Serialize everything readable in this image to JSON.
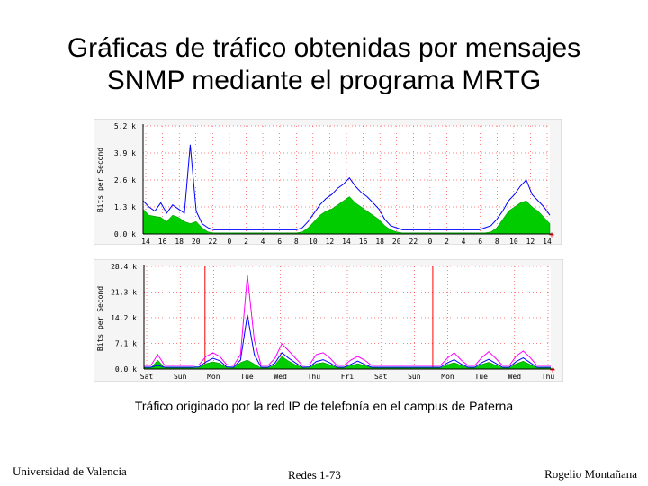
{
  "title": {
    "line1": "Gráficas de tráfico obtenidas por mensajes",
    "line2": "SNMP mediante el programa MRTG"
  },
  "caption": "Tráfico originado por la red IP de telefonía en el campus de Paterna",
  "footer": {
    "left": "Universidad de Valencia",
    "center": "Redes 1-73",
    "right": "Rogelio Montañana"
  },
  "colors": {
    "in_fill": "#00cc00",
    "out_line": "#0000ff",
    "peak_line": "#ff00ff",
    "marker": "#ff0000",
    "grid": "#ff0000",
    "plot_bg": "#ffffff",
    "frame": "#f5f5f5"
  },
  "chart_data": [
    {
      "type": "area",
      "name": "daily",
      "ylabel": "Bits per Second",
      "ylim": [
        0,
        5.2
      ],
      "yticks": [
        "0.0 k",
        "1.3 k",
        "2.6 k",
        "3.9 k",
        "5.2 k"
      ],
      "ytick_values": [
        0,
        1.3,
        2.6,
        3.9,
        5.2
      ],
      "xticks": [
        "14",
        "16",
        "18",
        "20",
        "22",
        "0",
        "2",
        "4",
        "6",
        "8",
        "10",
        "12",
        "14",
        "16",
        "18",
        "20",
        "22",
        "0",
        "2",
        "4",
        "6",
        "8",
        "10",
        "12",
        "14"
      ],
      "series": [
        {
          "name": "in",
          "values": [
            1.2,
            0.9,
            0.85,
            0.8,
            0.6,
            0.9,
            0.8,
            0.6,
            0.5,
            0.6,
            0.3,
            0.1,
            0.05,
            0.05,
            0.05,
            0.05,
            0.05,
            0.05,
            0.05,
            0.05,
            0.05,
            0.05,
            0.05,
            0.05,
            0.05,
            0.05,
            0.05,
            0.1,
            0.3,
            0.6,
            0.9,
            1.1,
            1.2,
            1.4,
            1.6,
            1.8,
            1.5,
            1.3,
            1.1,
            0.9,
            0.7,
            0.4,
            0.2,
            0.1,
            0.05,
            0.05,
            0.05,
            0.05,
            0.05,
            0.05,
            0.05,
            0.05,
            0.05,
            0.05,
            0.05,
            0.05,
            0.05,
            0.05,
            0.05,
            0.1,
            0.3,
            0.7,
            1.1,
            1.3,
            1.5,
            1.6,
            1.3,
            1.1,
            0.8,
            0.5
          ]
        },
        {
          "name": "out",
          "values": [
            1.6,
            1.3,
            1.1,
            1.5,
            1.0,
            1.4,
            1.2,
            1.0,
            4.3,
            1.1,
            0.5,
            0.3,
            0.2,
            0.2,
            0.2,
            0.2,
            0.2,
            0.2,
            0.2,
            0.2,
            0.2,
            0.2,
            0.2,
            0.2,
            0.2,
            0.2,
            0.2,
            0.3,
            0.6,
            1.0,
            1.4,
            1.7,
            1.9,
            2.2,
            2.4,
            2.7,
            2.3,
            2.0,
            1.8,
            1.5,
            1.2,
            0.7,
            0.4,
            0.3,
            0.2,
            0.2,
            0.2,
            0.2,
            0.2,
            0.2,
            0.2,
            0.2,
            0.2,
            0.2,
            0.2,
            0.2,
            0.2,
            0.2,
            0.3,
            0.4,
            0.7,
            1.1,
            1.6,
            1.9,
            2.3,
            2.6,
            1.9,
            1.6,
            1.3,
            0.9
          ]
        }
      ]
    },
    {
      "type": "area",
      "name": "weekly",
      "ylabel": "Bits per Second",
      "ylim": [
        0,
        28.4
      ],
      "yticks": [
        "0.0 k",
        "7.1 k",
        "14.2 k",
        "21.3 k",
        "28.4 k"
      ],
      "ytick_values": [
        0,
        7.1,
        14.2,
        21.3,
        28.4
      ],
      "xticks": [
        "Sat",
        "Sun",
        "Mon",
        "Tue",
        "Wed",
        "Thu",
        "Fri",
        "Sat",
        "Sun",
        "Mon",
        "Tue",
        "Wed",
        "Thu"
      ],
      "series": [
        {
          "name": "in",
          "values": [
            0.3,
            0.3,
            2.5,
            0.3,
            0.3,
            0.3,
            0.3,
            0.3,
            0.4,
            1.5,
            2.0,
            1.6,
            0.4,
            0.3,
            1.8,
            2.5,
            1.4,
            0.3,
            0.3,
            1.2,
            3.5,
            2.2,
            1.2,
            0.3,
            0.4,
            1.5,
            1.8,
            1.2,
            0.3,
            0.3,
            1.0,
            1.5,
            1.0,
            0.3,
            0.3,
            0.3,
            0.3,
            0.3,
            0.3,
            0.3,
            0.3,
            0.3,
            0.3,
            0.3,
            1.2,
            1.8,
            1.0,
            0.3,
            0.3,
            1.3,
            1.9,
            1.1,
            0.3,
            0.3,
            1.5,
            2.2,
            1.3,
            0.3,
            0.3,
            0.3
          ]
        },
        {
          "name": "out",
          "values": [
            0.5,
            0.5,
            1.0,
            0.5,
            0.5,
            0.5,
            0.5,
            0.5,
            0.6,
            2.0,
            3.0,
            2.3,
            0.6,
            0.5,
            2.5,
            15.0,
            4.0,
            0.5,
            0.5,
            1.7,
            4.5,
            3.0,
            1.7,
            0.5,
            0.6,
            2.1,
            2.6,
            1.7,
            0.5,
            0.5,
            1.3,
            2.2,
            1.3,
            0.5,
            0.5,
            0.5,
            0.5,
            0.5,
            0.5,
            0.5,
            0.5,
            0.5,
            0.5,
            0.5,
            1.7,
            2.6,
            1.4,
            0.5,
            0.5,
            1.8,
            2.7,
            1.6,
            0.5,
            0.5,
            2.1,
            3.1,
            1.8,
            0.5,
            0.5,
            0.5
          ]
        },
        {
          "name": "peak",
          "values": [
            1.0,
            1.0,
            4.0,
            1.0,
            1.0,
            1.0,
            1.0,
            1.0,
            1.2,
            3.5,
            4.5,
            3.5,
            1.2,
            1.0,
            4.0,
            26.0,
            8.0,
            1.0,
            1.0,
            3.0,
            7.0,
            5.0,
            3.0,
            1.0,
            1.2,
            4.0,
            4.5,
            3.0,
            1.0,
            1.0,
            2.5,
            3.5,
            2.5,
            1.0,
            1.0,
            1.0,
            1.0,
            1.0,
            1.0,
            1.0,
            1.0,
            1.0,
            1.0,
            1.0,
            3.0,
            4.5,
            2.5,
            1.0,
            1.0,
            3.2,
            4.8,
            3.0,
            1.0,
            1.0,
            3.6,
            5.0,
            3.2,
            1.0,
            1.0,
            1.0
          ]
        }
      ],
      "markers": [
        "Mon",
        "Mon"
      ]
    }
  ]
}
